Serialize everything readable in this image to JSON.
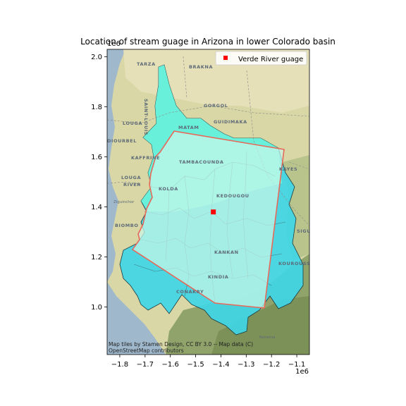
{
  "chart_data": {
    "type": "scatter",
    "title": "Location of stream guage in Arizona in lower Colorado basin",
    "xlabel": "",
    "ylabel": "",
    "xlim": [
      -1850000,
      -1050000
    ],
    "ylim": [
      810000,
      2030000
    ],
    "x_ticks": [
      -1800000,
      -1700000,
      -1600000,
      -1500000,
      -1400000,
      -1300000,
      -1200000,
      -1100000
    ],
    "x_tick_labels": [
      "−1.8",
      "−1.7",
      "−1.6",
      "−1.5",
      "−1.4",
      "−1.3",
      "−1.2",
      "−1.1"
    ],
    "y_ticks": [
      1000000,
      1200000,
      1400000,
      1600000,
      1800000,
      2000000
    ],
    "y_tick_labels": [
      "1.0",
      "1.2",
      "1.4",
      "1.6",
      "1.8",
      "2.0"
    ],
    "x_offset_label": "1e6",
    "y_offset_label": "1e6",
    "grid": false,
    "legend_position": "top-right",
    "series": [
      {
        "name": "Verde River guage",
        "marker": "square",
        "color": "#ff0000",
        "x": [
          -1430000
        ],
        "y": [
          1380000
        ]
      }
    ],
    "basin_outline_color": "#e8685a",
    "basin_fill_colors": [
      "#6ff5d8",
      "#3fd6e6"
    ]
  },
  "basemap": {
    "labels": [
      "TARZA",
      "BRAKNA",
      "SAINT-LOUIS",
      "GORGOL",
      "LOUGA",
      "MATAM",
      "GUIDIMAKA",
      "DIOURBEL",
      "KAFFRINE",
      "TAMBACOUNDA",
      "KAYES",
      "LOUGA",
      "RIVER",
      "KOLDA",
      "KEDOUGOU",
      "BIOMBO",
      "SIGUIRI",
      "KANKAN",
      "KOUROUSSA",
      "CONAKRY",
      "KINDIA",
      "Ziguinchor",
      "Kenema"
    ],
    "attribution_line1": "Map tiles by Stamen Design, CC BY 3.0 -- Map data (C)",
    "attribution_line2": "OpenStreetMap contributors"
  }
}
